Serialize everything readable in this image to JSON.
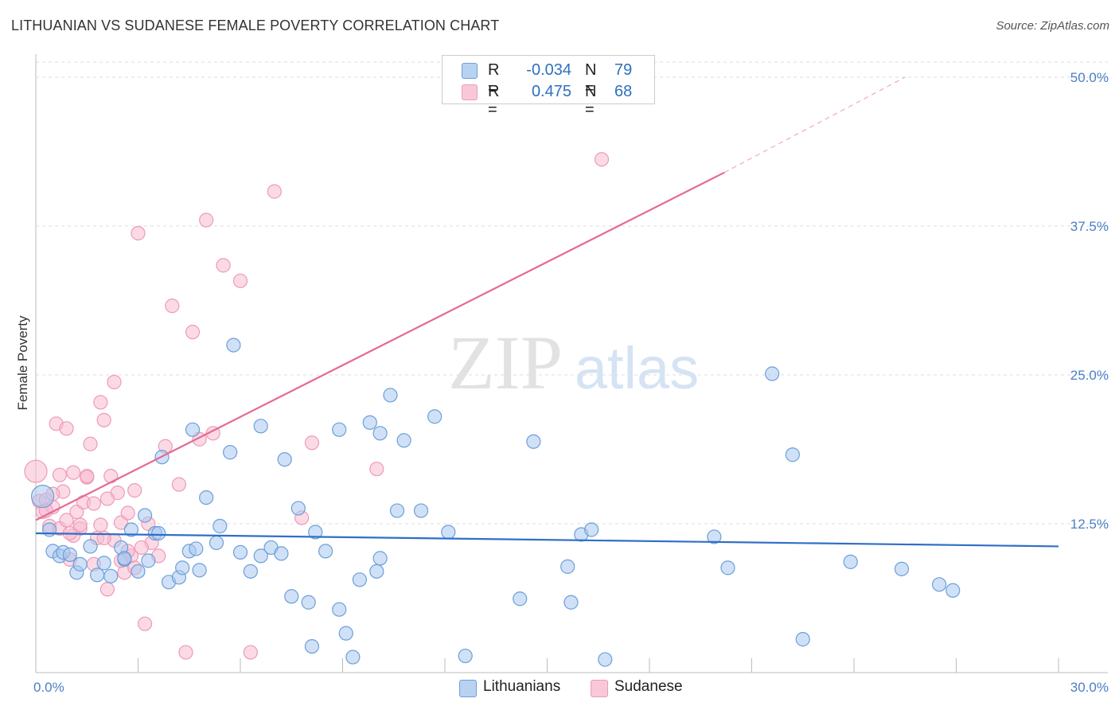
{
  "title": "LITHUANIAN VS SUDANESE FEMALE POVERTY CORRELATION CHART",
  "source": "Source: ZipAtlas.com",
  "watermark": {
    "zip": "ZIP",
    "atlas": "atlas"
  },
  "legend": {
    "rows": [
      {
        "r_label": "R =",
        "r_value": "-0.034",
        "n_label": "N =",
        "n_value": "79"
      },
      {
        "r_label": "R =",
        "r_value": "0.475",
        "n_label": "N =",
        "n_value": "68"
      }
    ]
  },
  "bottom_legend": {
    "series1": "Lithuanians",
    "series2": "Sudanese"
  },
  "colors": {
    "blue_fill": "#a9c8f0",
    "blue_stroke": "#6c9fd8",
    "blue_line": "#2f6fc8",
    "pink_fill": "#f7bcd0",
    "pink_stroke": "#ee9ab6",
    "pink_line": "#e66a95",
    "grid": "#dddddd",
    "tick_text": "#4a7fc6"
  },
  "chart_data": {
    "type": "scatter",
    "title": "LITHUANIAN VS SUDANESE FEMALE POVERTY CORRELATION CHART",
    "xlabel": "",
    "ylabel": "Female Poverty",
    "xlim": [
      0,
      30
    ],
    "ylim": [
      0,
      50
    ],
    "x_tick_labels": {
      "min": "0.0%",
      "max": "30.0%"
    },
    "y_ticks": [
      {
        "value": 12.5,
        "label": "12.5%"
      },
      {
        "value": 25.0,
        "label": "25.0%"
      },
      {
        "value": 37.5,
        "label": "37.5%"
      },
      {
        "value": 50.0,
        "label": "50.0%"
      }
    ],
    "grid": true,
    "legend_position": "top-center",
    "series": [
      {
        "name": "Lithuanians",
        "r": -0.034,
        "n": 79,
        "trend": {
          "x": [
            0,
            30
          ],
          "y": [
            11.7,
            10.6
          ]
        },
        "points": [
          [
            0.2,
            14.8
          ],
          [
            0.4,
            12.0
          ],
          [
            0.5,
            10.2
          ],
          [
            0.7,
            9.8
          ],
          [
            0.8,
            10.1
          ],
          [
            1.0,
            9.9
          ],
          [
            1.2,
            8.4
          ],
          [
            1.3,
            9.1
          ],
          [
            1.6,
            10.6
          ],
          [
            1.8,
            8.2
          ],
          [
            2.0,
            9.2
          ],
          [
            2.2,
            8.1
          ],
          [
            2.5,
            10.5
          ],
          [
            2.6,
            9.5
          ],
          [
            2.8,
            12.0
          ],
          [
            3.0,
            8.5
          ],
          [
            3.2,
            13.2
          ],
          [
            3.3,
            9.4
          ],
          [
            3.5,
            11.7
          ],
          [
            3.7,
            18.1
          ],
          [
            3.9,
            7.6
          ],
          [
            4.2,
            8.0
          ],
          [
            4.3,
            8.8
          ],
          [
            4.5,
            10.2
          ],
          [
            4.8,
            8.6
          ],
          [
            5.0,
            14.7
          ],
          [
            5.3,
            10.9
          ],
          [
            5.4,
            12.3
          ],
          [
            5.8,
            27.5
          ],
          [
            6.0,
            10.1
          ],
          [
            6.3,
            8.5
          ],
          [
            6.6,
            9.8
          ],
          [
            6.9,
            10.5
          ],
          [
            7.2,
            10.0
          ],
          [
            7.5,
            6.4
          ],
          [
            7.7,
            13.8
          ],
          [
            8.0,
            5.9
          ],
          [
            8.2,
            11.8
          ],
          [
            8.5,
            10.2
          ],
          [
            8.9,
            5.3
          ],
          [
            9.1,
            3.3
          ],
          [
            9.3,
            1.3
          ],
          [
            9.5,
            7.8
          ],
          [
            10.0,
            8.5
          ],
          [
            10.1,
            9.6
          ],
          [
            10.6,
            13.6
          ],
          [
            10.8,
            19.5
          ],
          [
            11.3,
            13.6
          ],
          [
            11.7,
            21.5
          ],
          [
            12.1,
            11.8
          ],
          [
            12.6,
            1.4
          ],
          [
            14.2,
            6.2
          ],
          [
            14.6,
            19.4
          ],
          [
            15.6,
            8.9
          ],
          [
            15.7,
            5.9
          ],
          [
            16.0,
            11.6
          ],
          [
            16.3,
            12.0
          ],
          [
            16.7,
            1.1
          ],
          [
            19.9,
            11.4
          ],
          [
            20.3,
            8.8
          ],
          [
            21.6,
            25.1
          ],
          [
            22.2,
            18.3
          ],
          [
            22.5,
            2.8
          ],
          [
            23.9,
            9.3
          ],
          [
            25.4,
            8.7
          ],
          [
            26.5,
            7.4
          ],
          [
            26.9,
            6.9
          ],
          [
            2.6,
            9.6
          ],
          [
            4.6,
            20.4
          ],
          [
            4.7,
            10.4
          ],
          [
            6.6,
            20.7
          ],
          [
            7.3,
            17.9
          ],
          [
            8.9,
            20.4
          ],
          [
            9.8,
            21.0
          ],
          [
            10.1,
            20.1
          ],
          [
            10.4,
            23.3
          ],
          [
            5.7,
            18.5
          ],
          [
            3.6,
            11.7
          ],
          [
            8.1,
            2.2
          ]
        ]
      },
      {
        "name": "Sudanese",
        "r": 0.475,
        "n": 68,
        "trend": {
          "x": [
            0,
            20.2
          ],
          "y": [
            12.8,
            42.0
          ]
        },
        "trend_dashed": {
          "x": [
            20.2,
            25.5
          ],
          "y": [
            42.0,
            50.0
          ]
        },
        "points": [
          [
            0.0,
            16.9
          ],
          [
            0.1,
            14.4
          ],
          [
            0.2,
            13.5
          ],
          [
            0.3,
            14.5
          ],
          [
            0.4,
            12.3
          ],
          [
            0.5,
            13.9
          ],
          [
            0.6,
            20.9
          ],
          [
            0.7,
            12.1
          ],
          [
            0.8,
            15.2
          ],
          [
            0.9,
            20.5
          ],
          [
            1.0,
            9.5
          ],
          [
            1.1,
            16.8
          ],
          [
            1.2,
            13.5
          ],
          [
            1.3,
            12.1
          ],
          [
            1.4,
            14.3
          ],
          [
            1.5,
            16.4
          ],
          [
            1.6,
            19.2
          ],
          [
            1.7,
            14.2
          ],
          [
            1.8,
            11.3
          ],
          [
            1.9,
            22.7
          ],
          [
            2.0,
            21.2
          ],
          [
            2.1,
            7.0
          ],
          [
            2.2,
            16.5
          ],
          [
            2.3,
            24.4
          ],
          [
            2.4,
            15.1
          ],
          [
            2.5,
            12.6
          ],
          [
            2.6,
            8.4
          ],
          [
            2.7,
            13.4
          ],
          [
            2.8,
            9.8
          ],
          [
            2.9,
            15.3
          ],
          [
            3.0,
            36.9
          ],
          [
            3.2,
            4.1
          ],
          [
            3.4,
            10.9
          ],
          [
            3.6,
            9.8
          ],
          [
            3.8,
            19.0
          ],
          [
            4.0,
            30.8
          ],
          [
            4.2,
            15.8
          ],
          [
            4.4,
            1.7
          ],
          [
            4.6,
            28.6
          ],
          [
            4.8,
            19.6
          ],
          [
            5.0,
            38.0
          ],
          [
            5.2,
            20.1
          ],
          [
            5.5,
            34.2
          ],
          [
            6.0,
            32.9
          ],
          [
            6.3,
            1.7
          ],
          [
            7.0,
            40.4
          ],
          [
            7.8,
            13.0
          ],
          [
            8.1,
            19.3
          ],
          [
            10.0,
            17.1
          ],
          [
            16.6,
            43.1
          ],
          [
            0.3,
            13.6
          ],
          [
            0.5,
            15.0
          ],
          [
            0.7,
            16.6
          ],
          [
            0.9,
            12.8
          ],
          [
            1.1,
            11.5
          ],
          [
            1.3,
            12.4
          ],
          [
            1.5,
            16.5
          ],
          [
            1.7,
            9.1
          ],
          [
            1.9,
            12.4
          ],
          [
            2.1,
            14.6
          ],
          [
            2.3,
            11.1
          ],
          [
            2.5,
            9.4
          ],
          [
            2.7,
            10.2
          ],
          [
            2.9,
            8.8
          ],
          [
            3.1,
            10.5
          ],
          [
            3.3,
            12.5
          ],
          [
            2.0,
            11.3
          ],
          [
            1.0,
            11.7
          ]
        ]
      }
    ]
  }
}
